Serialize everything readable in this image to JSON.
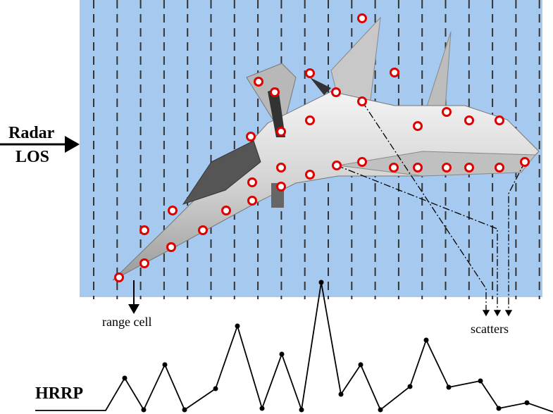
{
  "labels": {
    "radar": "Radar",
    "los": "LOS",
    "range_cell": "range cell",
    "scatters": "scatters",
    "hrrp": "HRRP"
  }
}
